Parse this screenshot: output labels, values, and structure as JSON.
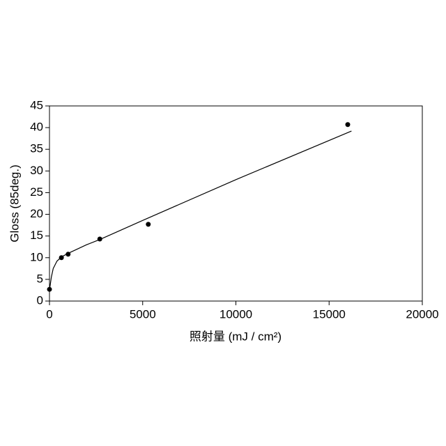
{
  "chart_data": {
    "type": "scatter",
    "xlabel": "照射量 (mJ / cm²)",
    "ylabel": "Gloss (85deg.)",
    "xlim": [
      0,
      20000
    ],
    "xticks": [
      0,
      5000,
      10000,
      15000,
      20000
    ],
    "ylim": [
      0,
      45
    ],
    "yticks": [
      0,
      5,
      10,
      15,
      20,
      25,
      30,
      35,
      40,
      45
    ],
    "series": [
      {
        "type": "scatter",
        "color": "#000000",
        "x": [
          0,
          640,
          1000,
          2700,
          5300,
          16000
        ],
        "values": [
          2.7,
          10.0,
          10.8,
          14.3,
          17.7,
          40.7
        ]
      },
      {
        "type": "line",
        "color": "#000000",
        "x": [
          0,
          100,
          200,
          400,
          650,
          1000,
          2000,
          2700,
          5000,
          10000,
          16200
        ],
        "values": [
          2.5,
          5.5,
          7.5,
          9.2,
          10.2,
          11.0,
          13.0,
          14.2,
          18.6,
          28.0,
          39.2
        ]
      }
    ]
  }
}
